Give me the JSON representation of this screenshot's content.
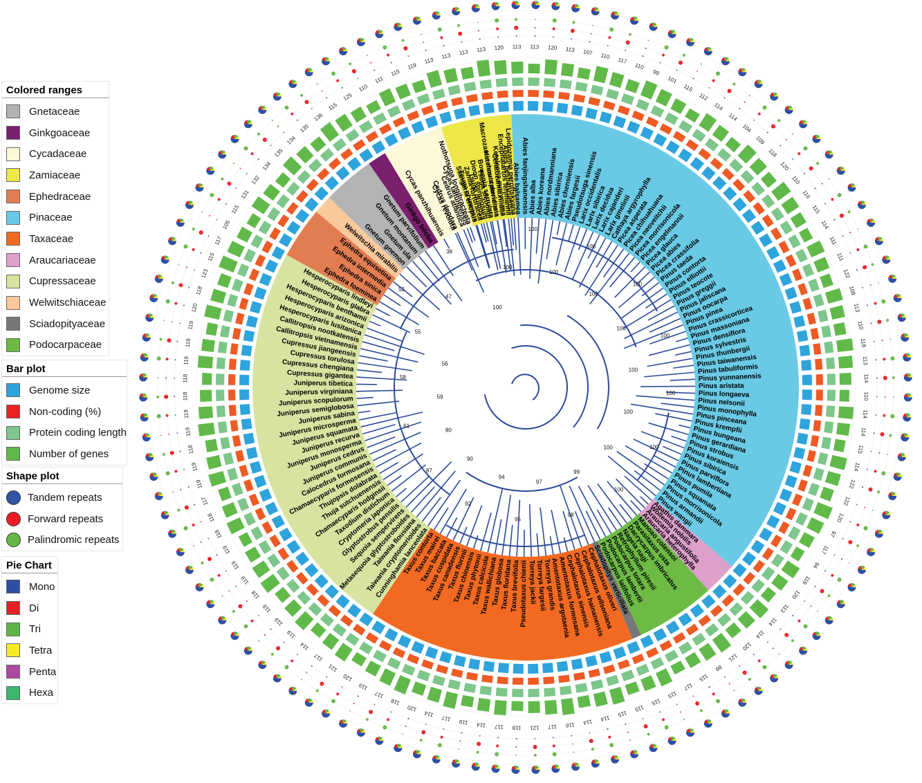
{
  "legends": {
    "colored_ranges": {
      "title": "Colored ranges",
      "items": [
        {
          "label": "Gnetaceae",
          "color": "#b3b3b3"
        },
        {
          "label": "Ginkgoaceae",
          "color": "#7a1f6e"
        },
        {
          "label": "Cycadaceae",
          "color": "#fdf8d8"
        },
        {
          "label": "Zamiaceae",
          "color": "#ede748"
        },
        {
          "label": "Ephedraceae",
          "color": "#e27d52"
        },
        {
          "label": "Pinaceae",
          "color": "#6acae5"
        },
        {
          "label": "Taxaceae",
          "color": "#f26a21"
        },
        {
          "label": "Araucariaceae",
          "color": "#dda0cb"
        },
        {
          "label": "Cupressaceae",
          "color": "#d7e3a0"
        },
        {
          "label": "Welwitschiaceae",
          "color": "#f9c99c"
        },
        {
          "label": "Sciadopityaceae",
          "color": "#777777"
        },
        {
          "label": "Podocarpaceae",
          "color": "#6dbb45"
        }
      ]
    },
    "bar_plot": {
      "title": "Bar plot",
      "items": [
        {
          "label": "Genome size",
          "color": "#2ea3dc"
        },
        {
          "label": "Non-coding (%)",
          "color": "#ee2024"
        },
        {
          "label": "Protein coding length",
          "color": "#7ec68b"
        },
        {
          "label": "Number of genes",
          "color": "#61b94a"
        }
      ]
    },
    "shape_plot": {
      "title": "Shape plot",
      "items": [
        {
          "label": "Tandem repeats",
          "color": "#2f55a4"
        },
        {
          "label": "Forward repeats",
          "color": "#ed1c24"
        },
        {
          "label": "Palindromic repeats",
          "color": "#65b845"
        }
      ]
    },
    "pie_chart": {
      "title": "Pie Chart",
      "items": [
        {
          "label": "Mono",
          "color": "#2e4fa3"
        },
        {
          "label": "Di",
          "color": "#e82027"
        },
        {
          "label": "Tri",
          "color": "#5fb448"
        },
        {
          "label": "Tetra",
          "color": "#f6ec22"
        },
        {
          "label": "Penta",
          "color": "#a84a9e"
        },
        {
          "label": "Hexa",
          "color": "#3cb56e"
        }
      ]
    }
  },
  "clades": [
    {
      "family": "Pinaceae",
      "color": "#6acae5",
      "start": -115,
      "end": 41,
      "taxa": [
        "Cedrus deodara",
        "Cedrus atlantica",
        "Nothotsuga longibracteata",
        "Tsuga chinensis",
        "Tsuga dumosa",
        "Tsuga sieboldii",
        "Keteleeria davidiana",
        "Keteleeria evelyniana",
        "Abies beshanzuensis",
        "Abies balsamea",
        "Abies fanjingshanensis",
        "Abies alba",
        "Abies koreana",
        "Abies nordmanniana",
        "Abies sibirica",
        "Abies chensiensis",
        "Abies fargesii",
        "Pseudotsuga sinensis",
        "Larix occidentalis",
        "Larix sibirica",
        "Larix decidua",
        "Larix cajanderi",
        "Larix gmelinii",
        "Cathaya argyrophylla",
        "Picea asperata",
        "Picea chihuahuana",
        "Picea neoveitchii",
        "Picea morrisonicola",
        "Picea engelmannii",
        "Picea glauca",
        "Picea abies",
        "Picea crassifolia",
        "Pinus taeda",
        "Pinus contorta",
        "Pinus elliottii",
        "Pinus teocote",
        "Pinus greggii",
        "Pinus jaliscana",
        "Pinus oocarpa",
        "Pinus pinea",
        "Pinus crassicorticea",
        "Pinus massoniana",
        "Pinus densiflora",
        "Pinus sylvestris",
        "Pinus thunbergii",
        "Pinus taiwanensis",
        "Pinus tabuliformis",
        "Pinus yunnanensis",
        "Pinus aristata",
        "Pinus longaeva",
        "Pinus nelsonii",
        "Pinus monophylla",
        "Pinus pinceana",
        "Pinus krempfii",
        "Pinus bungeana",
        "Pinus gerardiana",
        "Pinus strobus",
        "Pinus koraiensis",
        "Pinus sibirica",
        "Pinus parviflora",
        "Pinus lambertiana",
        "Pinus pumila",
        "Pinus squamata",
        "Pinus morrisonicola",
        "Pinus armandii",
        "Pinus wangii"
      ]
    },
    {
      "family": "Araucariaceae",
      "color": "#dda0cb",
      "start": 41,
      "end": 48,
      "taxa": [
        "Agathis dammara",
        "Wollemia nobilis",
        "Araucaria angustifolia",
        "Araucaria heterophylla"
      ]
    },
    {
      "family": "Podocarpaceae",
      "color": "#6dbb45",
      "start": 48,
      "end": 65,
      "taxa": [
        "Manoao colensoi",
        "Parasitaxus usta",
        "Dacrycarpus imbricatus",
        "Nageia nagi",
        "Retrophyllum piresii",
        "Podocarpus totara",
        "Podocarpus lambertii",
        "Podocarpus latifolius"
      ]
    },
    {
      "family": "Sciadopityaceae",
      "color": "#777777",
      "start": 65,
      "end": 67,
      "taxa": [
        "Sciadopitys verticillata"
      ]
    },
    {
      "family": "Taxaceae",
      "color": "#f26a21",
      "start": 67,
      "end": 124,
      "taxa": [
        "Cephalotaxus oliveri",
        "Cephalotaxus wilsoniana",
        "Cephalotaxus hainanensis",
        "Cephalotaxus sinensis",
        "Amentotaxus formosana",
        "Amentotaxus argotaenia",
        "Torreya grandis",
        "Torreya fargesii",
        "Torreya jackii",
        "Pseudotaxus chienii",
        "Taxus brevifolia",
        "Taxus floridana",
        "Taxus globosa",
        "Taxus wallichiana",
        "Taxus calcicola",
        "Taxus phytonii",
        "Taxus chinensis",
        "Taxus florinii",
        "Taxus canadensis",
        "Taxus cuspidata",
        "Taxus baccata",
        "Taxus mairei",
        "Taxus contorta"
      ]
    },
    {
      "family": "Cupressaceae",
      "color": "#d7e3a0",
      "start": 124,
      "end": 209,
      "taxa": [
        "Cunninghamia lanceolata",
        "Taiwania cryptomerioides",
        "Taiwania flousiana",
        "Metasequoia glyptostroboides",
        "Sequoia sempervirens",
        "Glyptostrobus pensilis",
        "Cryptomeria japonica",
        "Taxodium distichum",
        "Chamaecyparis hodginsii",
        "Thuja sutchuenensis",
        "Thujopsis dolabrata",
        "Chamaecyparis formosensis",
        "Calocedrus formosana",
        "Juniperus communis",
        "Juniperus cedrus",
        "Juniperus monosperma",
        "Juniperus recurva",
        "Juniperus squamata",
        "Juniperus microsperma",
        "Juniperus sabina",
        "Juniperus semiglobosa",
        "Juniperus scopulorum",
        "Juniperus virginiana",
        "Juniperus tibetica",
        "Cupressus gigantea",
        "Cupressus chengiana",
        "Cupressus torulosa",
        "Cupressus jiangeensis",
        "Callitropsis vietnamensis",
        "Callitropsis nootkatensis",
        "Hesperocyparis lusitanica",
        "Hesperocyparis arizonica",
        "Hesperocyparis benthamii",
        "Hesperocyparis glabra",
        "Hesperocyparis lindleyi"
      ]
    },
    {
      "family": "Ephedraceae",
      "color": "#e27d52",
      "start": 209,
      "end": 220,
      "taxa": [
        "Ephedra foeminea",
        "Ephedra sinica",
        "Ephedra intermedia",
        "Ephedra equisetina"
      ]
    },
    {
      "family": "Welwitschiaceae",
      "color": "#f9c99c",
      "start": 220,
      "end": 224,
      "taxa": [
        "Welwitschia mirabilis"
      ]
    },
    {
      "family": "Gnetaceae",
      "color": "#b3b3b3",
      "start": 224,
      "end": 235,
      "taxa": [
        "Gnetum gnemon",
        "Gnetum ula",
        "Gnetum montanum",
        "Gnetum parvifolium"
      ]
    },
    {
      "family": "Ginkgoaceae",
      "color": "#7a1f6e",
      "start": 235,
      "end": 239,
      "taxa": [
        "Ginkgo biloba"
      ]
    },
    {
      "family": "Cycadaceae",
      "color": "#fdf8d8",
      "start": 239,
      "end": 252,
      "taxa": [
        "Cycas panzhihuaensis",
        "Cycas revoluta",
        "Cycas taitungensis"
      ]
    },
    {
      "family": "Zamiaceae",
      "color": "#ede748",
      "start": 252,
      "end": 245,
      "taxa": [
        "Stangeria eriopus",
        "Zamia furfuracea",
        "Dioon spinulosum",
        "Bowenia serrulata",
        "Macrozamia mountperriensis",
        "Ceratozamia hildae",
        "Encephalartos lehmannii",
        "Lepidozamia peroffskyana"
      ]
    }
  ],
  "outer_ring_numbers": [
    "113",
    "120",
    "113",
    "107",
    "110",
    "117",
    "110",
    "99",
    "101",
    "115",
    "112",
    "114",
    "114",
    "104",
    "109",
    "118",
    "120",
    "110",
    "116",
    "115",
    "114",
    "111",
    "111",
    "122",
    "108",
    "113",
    "110",
    "118",
    "113",
    "114",
    "110",
    "114",
    "114",
    "115",
    "114",
    "122",
    "122",
    "120",
    "97",
    "117",
    "94",
    "119",
    "120",
    "113",
    "114",
    "114",
    "120",
    "121",
    "89",
    "115",
    "117",
    "115",
    "115",
    "115",
    "115",
    "114",
    "114",
    "116",
    "117",
    "121",
    "118",
    "117",
    "114",
    "119",
    "117",
    "114",
    "120",
    "118",
    "117",
    "119",
    "120",
    "121",
    "117",
    "114",
    "119",
    "119",
    "119",
    "118",
    "119",
    "119",
    "119",
    "118",
    "118",
    "117",
    "119",
    "119",
    "118",
    "119",
    "119",
    "118",
    "118",
    "119",
    "119",
    "119",
    "120",
    "118",
    "123",
    "115",
    "117",
    "105",
    "115",
    "131",
    "132",
    "134",
    "135",
    "134",
    "135",
    "136",
    "115",
    "125",
    "110",
    "111",
    "115",
    "119",
    "113",
    "113",
    "113",
    "113",
    "120",
    "113"
  ],
  "support_values": [
    "100",
    "100",
    "100",
    "100",
    "100",
    "100",
    "100",
    "100",
    "100",
    "100",
    "100",
    "100",
    "100",
    "100",
    "100",
    "99",
    "98",
    "97",
    "95",
    "94",
    "92",
    "90",
    "87",
    "80",
    "61",
    "59",
    "58",
    "56",
    "55",
    "52",
    "47",
    "38"
  ]
}
